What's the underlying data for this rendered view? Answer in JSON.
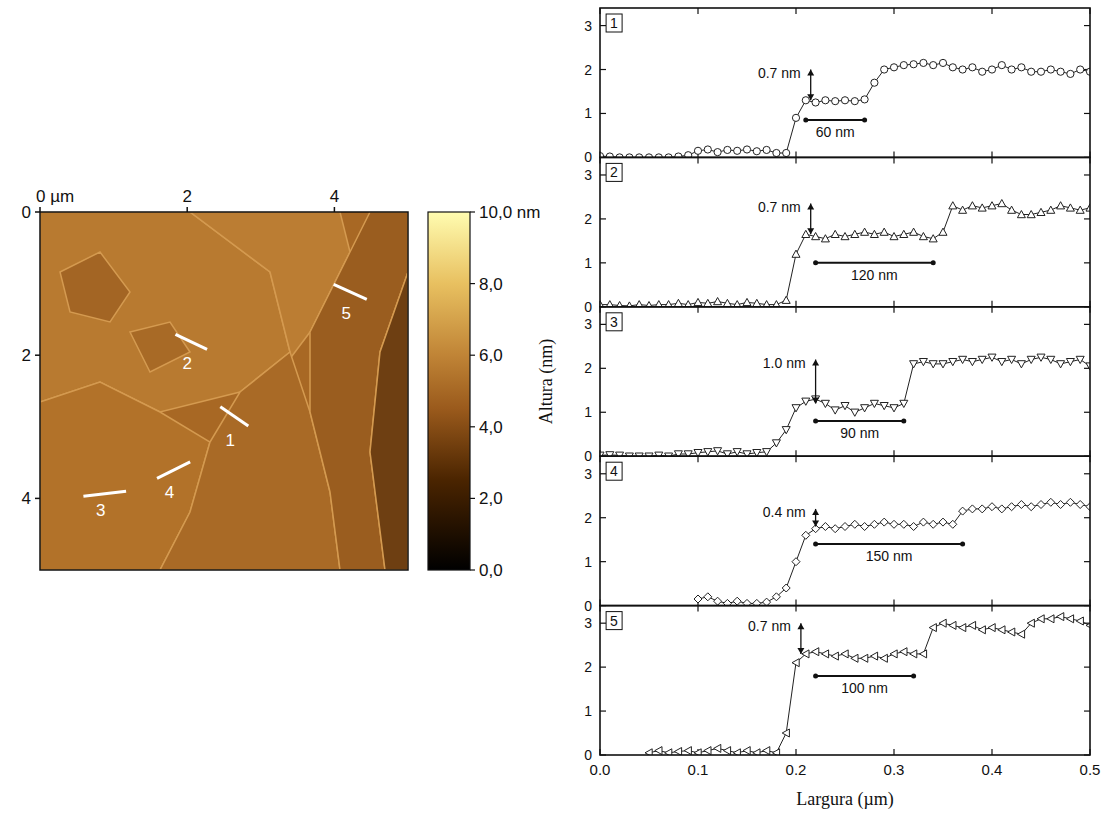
{
  "afm_image": {
    "xlim": [
      0,
      5
    ],
    "ylim": [
      0,
      5
    ],
    "xticks": [
      {
        "value": 0,
        "label": "0 µm"
      },
      2,
      4
    ],
    "yticks": [
      0,
      2,
      4
    ],
    "colorbar": {
      "range": [
        0,
        10
      ],
      "ticks": [
        {
          "value": 0,
          "label": "0,0"
        },
        {
          "value": 2,
          "label": "2,0"
        },
        {
          "value": 4,
          "label": "4,0"
        },
        {
          "value": 6,
          "label": "6,0"
        },
        {
          "value": 8,
          "label": "8,0"
        },
        {
          "value": 10,
          "label": "10,0 nm"
        }
      ]
    },
    "profile_lines": [
      {
        "label": "1",
        "x": [
          2.45,
          2.83
        ],
        "y": [
          2.72,
          2.99
        ]
      },
      {
        "label": "2",
        "x": [
          1.84,
          2.27
        ],
        "y": [
          1.71,
          1.92
        ]
      },
      {
        "label": "3",
        "x": [
          0.59,
          1.17
        ],
        "y": [
          3.97,
          3.9
        ]
      },
      {
        "label": "4",
        "x": [
          1.59,
          2.04
        ],
        "y": [
          3.72,
          3.49
        ]
      },
      {
        "label": "5",
        "x": [
          3.99,
          4.44
        ],
        "y": [
          1.01,
          1.22
        ]
      }
    ]
  },
  "chart_data": {
    "type": "line",
    "xlabel": "Largura (µm)",
    "ylabel": "Altura (nm)",
    "xlim": [
      0,
      0.5
    ],
    "ylim": [
      0,
      3.4
    ],
    "xticks": [
      {
        "value": 0,
        "label": "0.0"
      },
      {
        "value": 0.1,
        "label": "0.1"
      },
      {
        "value": 0.2,
        "label": "0.2"
      },
      {
        "value": 0.3,
        "label": "0.3"
      },
      {
        "value": 0.4,
        "label": "0.4"
      },
      {
        "value": 0.5,
        "label": "0.5"
      }
    ],
    "yticks": [
      0,
      1,
      2,
      3
    ],
    "x": [
      0,
      0.01,
      0.02,
      0.03,
      0.04,
      0.05,
      0.06,
      0.07,
      0.08,
      0.09,
      0.1,
      0.11,
      0.12,
      0.13,
      0.14,
      0.15,
      0.16,
      0.17,
      0.18,
      0.19,
      0.2,
      0.21,
      0.22,
      0.23,
      0.24,
      0.25,
      0.26,
      0.27,
      0.28,
      0.29,
      0.3,
      0.31,
      0.32,
      0.33,
      0.34,
      0.35,
      0.36,
      0.37,
      0.38,
      0.39,
      0.4,
      0.41,
      0.42,
      0.43,
      0.44,
      0.45,
      0.46,
      0.47,
      0.48,
      0.49,
      0.5
    ],
    "panels": [
      {
        "title": "1",
        "marker": "circle",
        "color": "#222222",
        "values": [
          0.03,
          0.02,
          0.0,
          0.0,
          0.0,
          0.0,
          0.0,
          0.0,
          0.02,
          0.05,
          0.15,
          0.18,
          0.12,
          0.17,
          0.15,
          0.18,
          0.14,
          0.17,
          0.1,
          0.1,
          0.9,
          1.3,
          1.25,
          1.3,
          1.28,
          1.3,
          1.28,
          1.32,
          1.7,
          2.0,
          2.05,
          2.1,
          2.12,
          2.15,
          2.1,
          2.15,
          2.05,
          2.0,
          2.05,
          1.95,
          2.0,
          2.1,
          2.0,
          2.05,
          1.95,
          1.95,
          2.0,
          1.95,
          1.9,
          2.0,
          1.95
        ],
        "height": {
          "text": "0.7 nm",
          "x": 0.215,
          "y": [
            1.3,
            2.0
          ]
        },
        "width": {
          "text": "60 nm",
          "x": [
            0.21,
            0.27
          ],
          "y": 0.85
        }
      },
      {
        "title": "2",
        "marker": "triangle",
        "color": "#222222",
        "values": [
          0.05,
          0.05,
          0.03,
          0.02,
          0.05,
          0.03,
          0.05,
          0.05,
          0.08,
          0.05,
          0.1,
          0.08,
          0.12,
          0.08,
          0.05,
          0.1,
          0.08,
          0.05,
          0.05,
          0.15,
          1.2,
          1.65,
          1.6,
          1.55,
          1.65,
          1.6,
          1.65,
          1.7,
          1.65,
          1.7,
          1.6,
          1.65,
          1.7,
          1.6,
          1.55,
          1.7,
          2.3,
          2.2,
          2.3,
          2.25,
          2.3,
          2.35,
          2.2,
          2.1,
          2.1,
          2.15,
          2.2,
          2.3,
          2.25,
          2.2,
          2.25
        ],
        "height": {
          "text": "0.7 nm",
          "x": 0.215,
          "y": [
            1.65,
            2.35
          ]
        },
        "width": {
          "text": "120 nm",
          "x": [
            0.22,
            0.34
          ],
          "y": 1.0
        }
      },
      {
        "title": "3",
        "marker": "triangle-down",
        "color": "#222222",
        "values": [
          0.02,
          0.03,
          0.02,
          0.0,
          0.0,
          0.0,
          0.02,
          0.0,
          0.05,
          0.05,
          0.08,
          0.1,
          0.12,
          0.05,
          0.1,
          0.05,
          0.08,
          0.1,
          0.3,
          0.6,
          1.1,
          1.25,
          1.3,
          1.2,
          1.05,
          1.15,
          1.0,
          1.1,
          1.2,
          1.15,
          1.1,
          1.2,
          2.1,
          2.15,
          2.1,
          2.1,
          2.15,
          2.2,
          2.15,
          2.2,
          2.25,
          2.15,
          2.2,
          2.1,
          2.2,
          2.25,
          2.2,
          2.1,
          2.15,
          2.2,
          2.05
        ],
        "height": {
          "text": "1.0 nm",
          "x": 0.22,
          "y": [
            1.2,
            2.2
          ]
        },
        "width": {
          "text": "90 nm",
          "x": [
            0.22,
            0.31
          ],
          "y": 0.8
        }
      },
      {
        "title": "4",
        "marker": "diamond",
        "color": "#222222",
        "values": [
          null,
          null,
          null,
          null,
          null,
          null,
          null,
          null,
          null,
          null,
          0.15,
          0.2,
          0.1,
          0.05,
          0.1,
          0.05,
          0.05,
          0.08,
          0.2,
          0.4,
          1.0,
          1.6,
          1.75,
          1.8,
          1.75,
          1.8,
          1.85,
          1.8,
          1.85,
          1.9,
          1.85,
          1.85,
          1.8,
          1.9,
          1.85,
          1.9,
          1.85,
          2.15,
          2.2,
          2.2,
          2.25,
          2.2,
          2.25,
          2.3,
          2.25,
          2.3,
          2.35,
          2.3,
          2.35,
          2.3,
          2.25
        ],
        "height": {
          "text": "0.4 nm",
          "x": 0.22,
          "y": [
            1.8,
            2.2
          ]
        },
        "width": {
          "text": "150 nm",
          "x": [
            0.22,
            0.37
          ],
          "y": 1.4
        }
      },
      {
        "title": "5",
        "marker": "triangle-left",
        "color": "#222222",
        "values": [
          null,
          null,
          null,
          null,
          null,
          0.05,
          0.1,
          0.05,
          0.08,
          0.1,
          0.05,
          0.1,
          0.15,
          0.1,
          0.05,
          0.1,
          0.05,
          0.1,
          0.05,
          0.5,
          2.1,
          2.3,
          2.35,
          2.3,
          2.25,
          2.3,
          2.2,
          2.2,
          2.25,
          2.2,
          2.3,
          2.35,
          2.3,
          2.3,
          2.9,
          3.0,
          2.95,
          2.9,
          2.95,
          2.85,
          2.9,
          2.85,
          2.8,
          2.75,
          3.0,
          3.1,
          3.1,
          3.15,
          3.1,
          3.05,
          2.95
        ],
        "height": {
          "text": "0.7 nm",
          "x": 0.205,
          "y": [
            2.3,
            3.0
          ]
        },
        "width": {
          "text": "100 nm",
          "x": [
            0.22,
            0.32
          ],
          "y": 1.8
        }
      }
    ]
  }
}
